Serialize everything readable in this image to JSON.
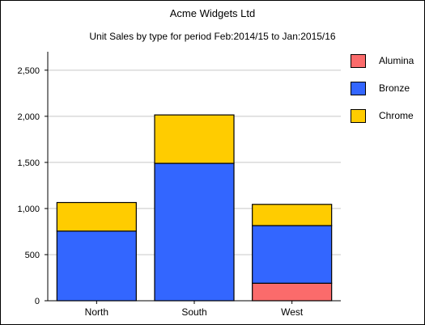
{
  "chart_data": {
    "type": "bar",
    "stacked": true,
    "title": "Acme Widgets Ltd",
    "subtitle": "Unit Sales by type for period Feb:2014/15 to Jan:2015/16",
    "categories": [
      "North",
      "South",
      "West"
    ],
    "series": [
      {
        "name": "Alumina",
        "color": "#fb6b6b",
        "values": [
          0,
          0,
          190
        ]
      },
      {
        "name": "Bronze",
        "color": "#3366ff",
        "values": [
          755,
          1490,
          625
        ]
      },
      {
        "name": "Chrome",
        "color": "#ffcc00",
        "values": [
          310,
          525,
          230
        ]
      }
    ],
    "ylim": [
      0,
      2700
    ],
    "yticks": [
      0,
      500,
      1000,
      1500,
      2000,
      2500
    ],
    "ytick_labels": [
      "0",
      "500",
      "1,000",
      "1,500",
      "2,000",
      "2,500"
    ],
    "grid": true,
    "legend_position": "right"
  }
}
